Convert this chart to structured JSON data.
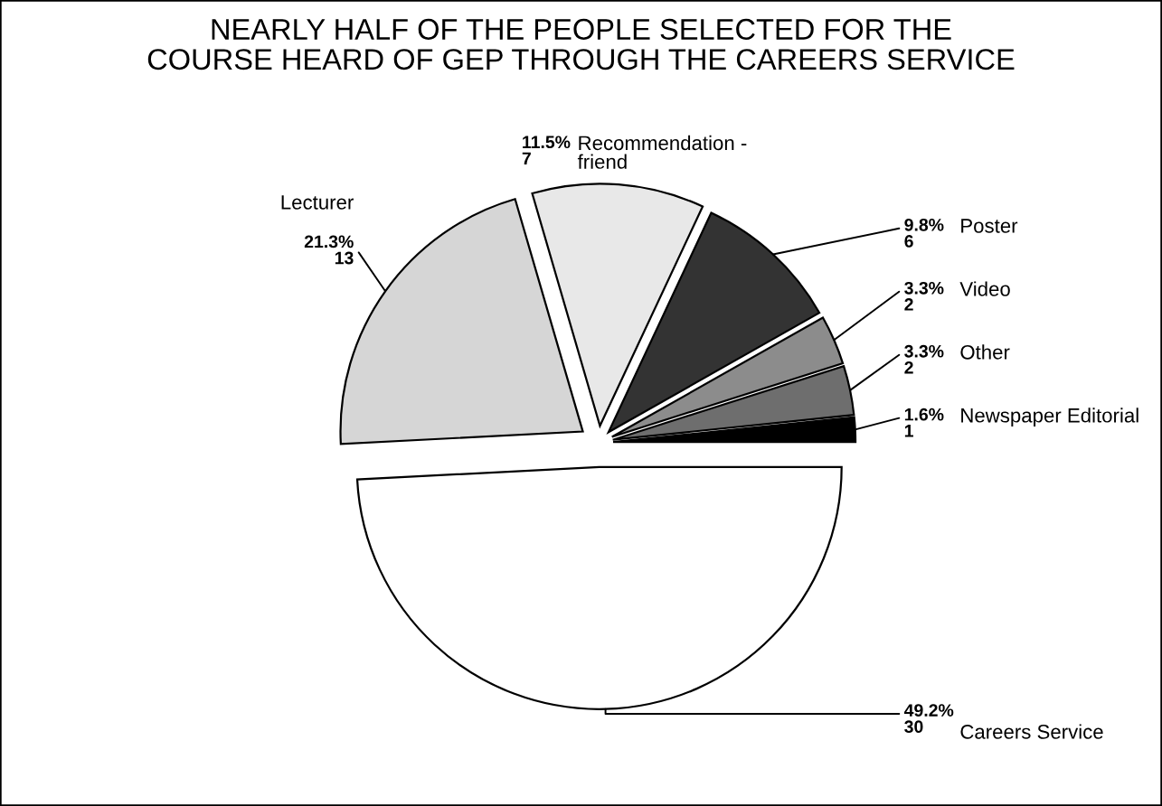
{
  "chart_data": {
    "type": "pie",
    "title": "NEARLY HALF OF THE PEOPLE SELECTED FOR THE\nCOURSE HEARD OF GEP THROUGH THE CAREERS SERVICE",
    "categories": [
      "Newspaper Editorial",
      "Other",
      "Video",
      "Poster",
      "Recommendation -\nfriend",
      "Lecturer",
      "Careers Service"
    ],
    "values": [
      1,
      2,
      2,
      6,
      7,
      13,
      30
    ],
    "colors": [
      "#000000",
      "#6e6e6e",
      "#8c8c8c",
      "#333333",
      "#e8e8e8",
      "#d6d6d6",
      "#ffffff"
    ],
    "value_labels": [
      "1.6%\n1",
      "3.3%\n2",
      "3.3%\n2",
      "9.8%\n6",
      "11.5%\n7",
      "21.3%\n13",
      "49.2%\n30"
    ]
  }
}
